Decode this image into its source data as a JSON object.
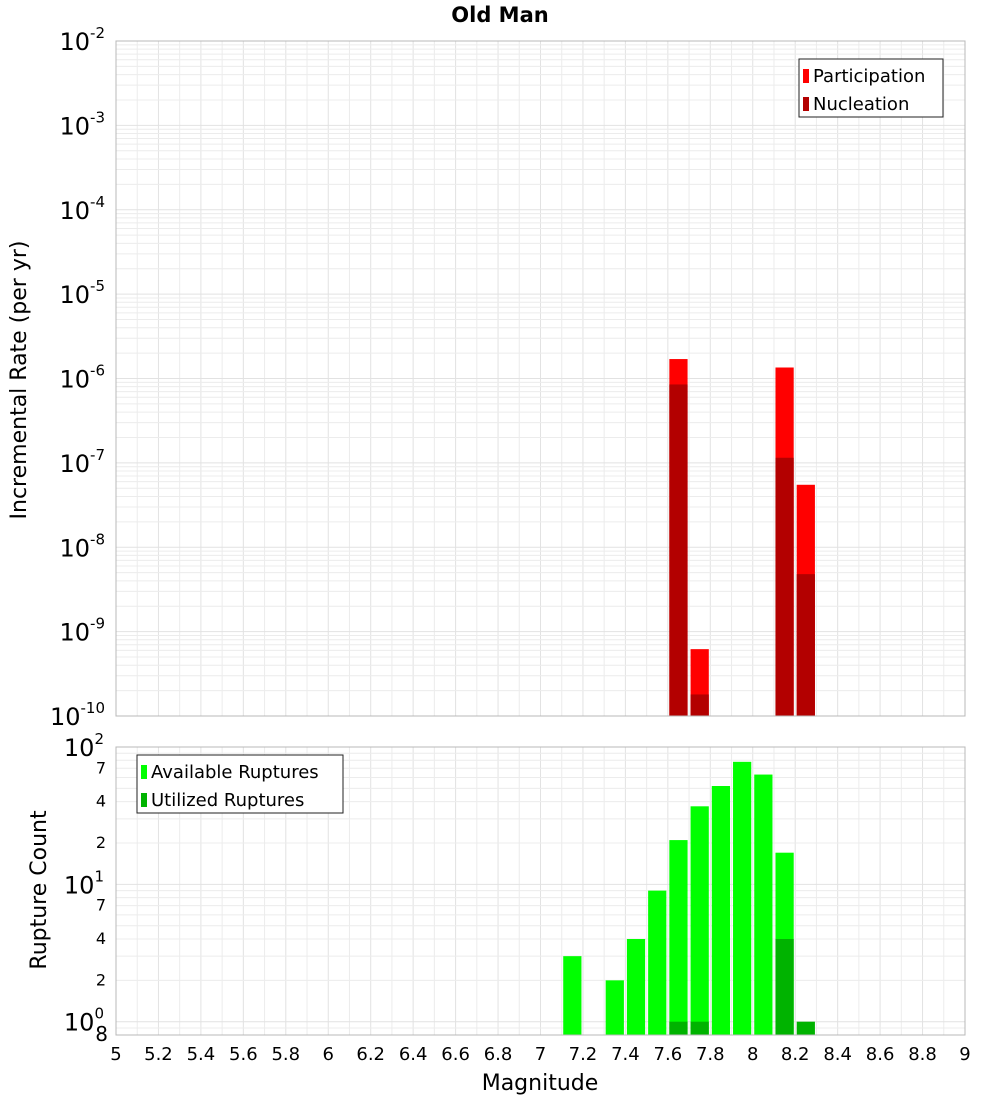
{
  "title": "Old Man",
  "xlabel": "Magnitude",
  "colors": {
    "participation": "#ff0000",
    "nucleation": "#b30000",
    "available": "#00ff00",
    "utilized": "#00b300"
  },
  "chart_data": [
    {
      "type": "bar",
      "ylabel": "Incremental Rate (per yr)",
      "yscale": "log",
      "xlim": [
        5,
        9
      ],
      "ylim": [
        1e-10,
        0.01
      ],
      "bin_width": 0.1,
      "legend_position": "top-right",
      "series": [
        {
          "name": "Participation",
          "color": "#ff0000",
          "points": [
            {
              "x": 7.65,
              "y": 1.7e-06
            },
            {
              "x": 7.75,
              "y": 6.2e-10
            },
            {
              "x": 8.15,
              "y": 1.35e-06
            },
            {
              "x": 8.25,
              "y": 5.5e-08
            }
          ]
        },
        {
          "name": "Nucleation",
          "color": "#b30000",
          "points": [
            {
              "x": 7.65,
              "y": 8.5e-07
            },
            {
              "x": 7.75,
              "y": 1.8e-10
            },
            {
              "x": 8.15,
              "y": 1.15e-07
            },
            {
              "x": 8.25,
              "y": 4.8e-09
            }
          ]
        }
      ]
    },
    {
      "type": "bar",
      "ylabel": "Rupture Count",
      "yscale": "log",
      "xlim": [
        5,
        9
      ],
      "ylim": [
        0.8,
        100
      ],
      "bin_width": 0.1,
      "legend_position": "top-left",
      "series": [
        {
          "name": "Available Ruptures",
          "color": "#00ff00",
          "points": [
            {
              "x": 7.15,
              "y": 3
            },
            {
              "x": 7.35,
              "y": 2
            },
            {
              "x": 7.45,
              "y": 4
            },
            {
              "x": 7.55,
              "y": 9
            },
            {
              "x": 7.65,
              "y": 21
            },
            {
              "x": 7.75,
              "y": 37
            },
            {
              "x": 7.85,
              "y": 52
            },
            {
              "x": 7.95,
              "y": 78
            },
            {
              "x": 8.05,
              "y": 63
            },
            {
              "x": 8.15,
              "y": 17
            }
          ]
        },
        {
          "name": "Utilized Ruptures",
          "color": "#00b300",
          "points": [
            {
              "x": 7.65,
              "y": 1
            },
            {
              "x": 7.75,
              "y": 1
            },
            {
              "x": 8.15,
              "y": 4
            },
            {
              "x": 8.25,
              "y": 1
            }
          ]
        }
      ]
    }
  ]
}
